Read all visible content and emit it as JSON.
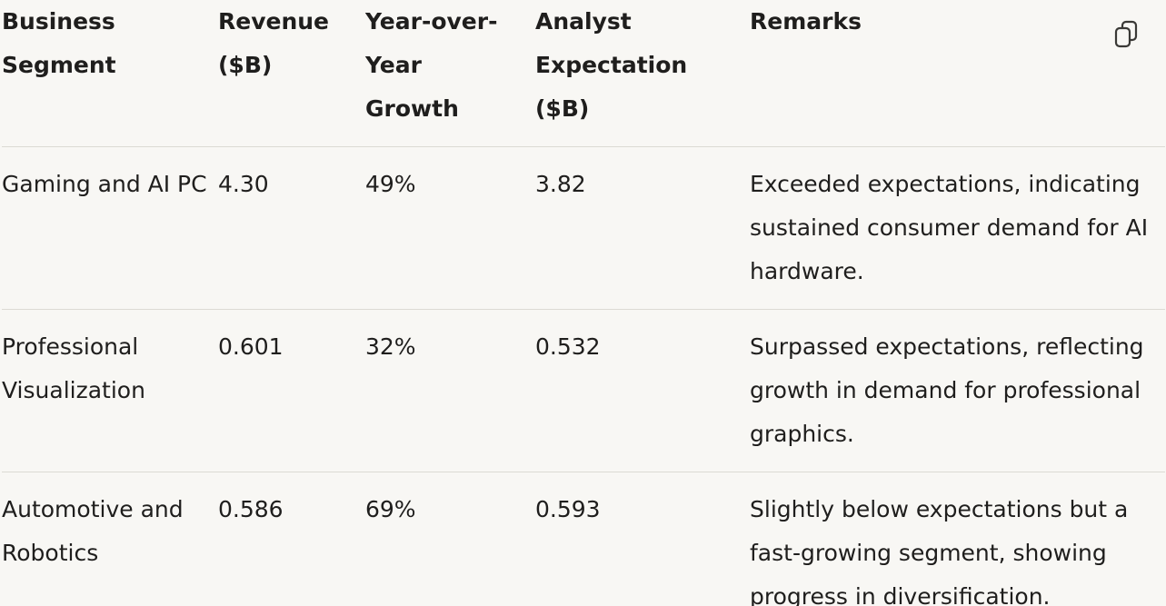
{
  "table": {
    "headers": [
      [
        "Business",
        "Segment"
      ],
      [
        "Revenue",
        "($B)"
      ],
      [
        "Year-over-",
        "Year",
        "Growth"
      ],
      [
        "Analyst",
        "Expectation",
        "($B)"
      ],
      [
        "Remarks"
      ]
    ],
    "rows": [
      {
        "segment": "Gaming and AI PC",
        "revenue": "4.30",
        "growth": "49%",
        "expectation": "3.82",
        "remarks": "Exceeded expectations, indicating sustained consumer demand for AI hardware."
      },
      {
        "segment": "Professional Visualization",
        "revenue": "0.601",
        "growth": "32%",
        "expectation": "0.532",
        "remarks": "Surpassed expectations, reflecting growth in demand for professional graphics."
      },
      {
        "segment": "Automotive and Robotics",
        "revenue": "0.586",
        "growth": "69%",
        "expectation": "0.593",
        "remarks": "Slightly below expectations but a fast-growing segment, showing progress in diversification."
      }
    ]
  },
  "icons": {
    "copy": "copy-icon"
  }
}
